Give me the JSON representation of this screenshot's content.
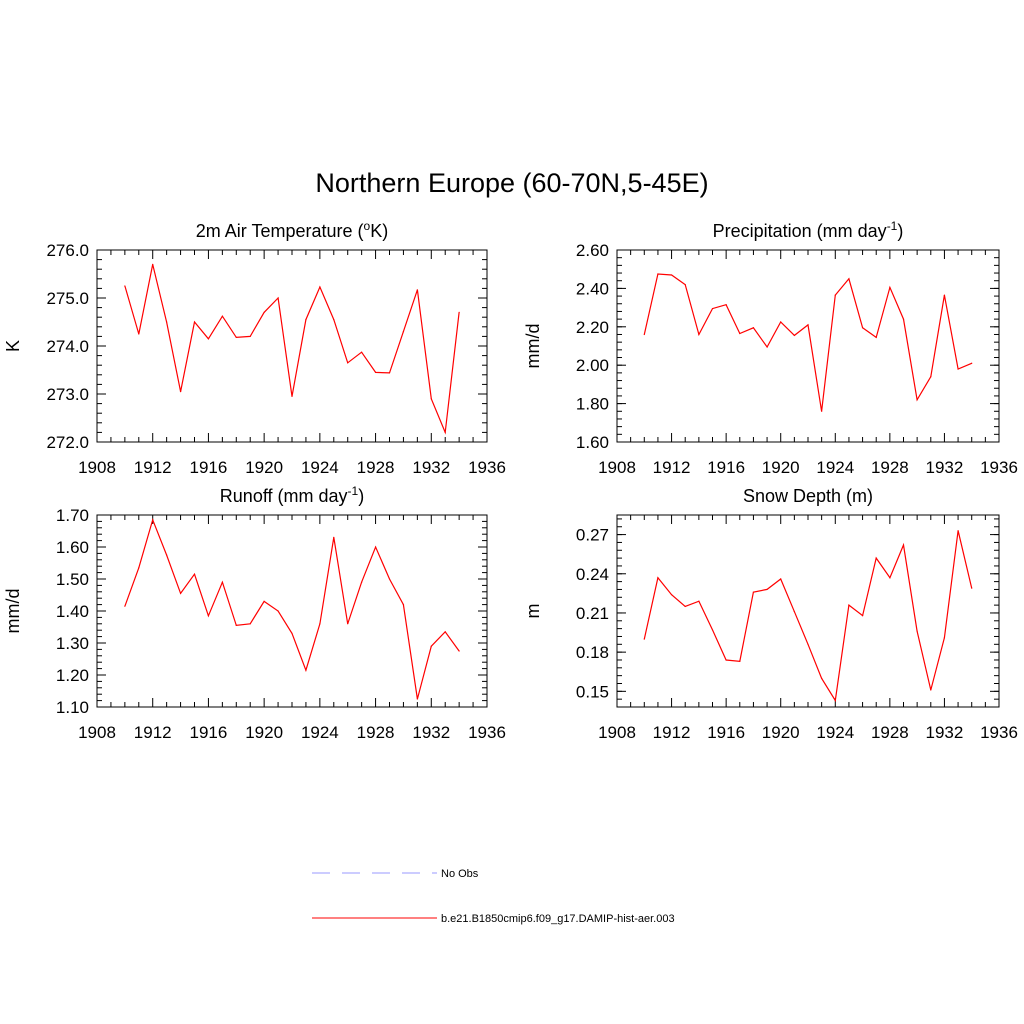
{
  "title": "Northern Europe (60-70N,5-45E)",
  "colors": {
    "model": "#ff0000",
    "obs": "#9999ff",
    "axis": "#000000"
  },
  "legend": [
    {
      "label": "No Obs",
      "style": "dashed",
      "color": "#9999ff"
    },
    {
      "label": "b.e21.B1850cmip6.f09_g17.DAMIP-hist-aer.003",
      "style": "solid",
      "color": "#ff0000"
    }
  ],
  "chart_data": [
    {
      "type": "line",
      "title": "2m Air Temperature (",
      "title_sup": "o",
      "title_tail": "K)",
      "ylabel": "K",
      "xlim": [
        1908,
        1936
      ],
      "ylim": [
        272.0,
        276.0
      ],
      "xticks": [
        1908,
        1912,
        1916,
        1920,
        1924,
        1928,
        1932,
        1936
      ],
      "yticks": [
        "272.0",
        "273.0",
        "274.0",
        "275.0",
        "276.0"
      ],
      "x": [
        1910,
        1911,
        1912,
        1913,
        1914,
        1915,
        1916,
        1917,
        1918,
        1919,
        1920,
        1921,
        1922,
        1923,
        1924,
        1925,
        1926,
        1927,
        1928,
        1929,
        1930,
        1931,
        1932,
        1933,
        1934
      ],
      "series": [
        {
          "values": [
            275.25,
            274.25,
            275.7,
            274.5,
            273.05,
            274.5,
            274.15,
            274.62,
            274.18,
            274.2,
            274.7,
            275.0,
            272.95,
            274.55,
            275.23,
            274.55,
            273.65,
            273.87,
            273.45,
            273.44,
            274.3,
            275.17,
            272.9,
            272.2,
            274.7
          ]
        }
      ]
    },
    {
      "type": "line",
      "title": "Precipitation (mm day",
      "title_sup": "-1",
      "title_tail": ")",
      "ylabel": "mm/d",
      "xlim": [
        1908,
        1936
      ],
      "ylim": [
        1.6,
        2.6
      ],
      "xticks": [
        1908,
        1912,
        1916,
        1920,
        1924,
        1928,
        1932,
        1936
      ],
      "yticks": [
        "1.60",
        "1.80",
        "2.00",
        "2.20",
        "2.40",
        "2.60"
      ],
      "x": [
        1910,
        1911,
        1912,
        1913,
        1914,
        1915,
        1916,
        1917,
        1918,
        1919,
        1920,
        1921,
        1922,
        1923,
        1924,
        1925,
        1926,
        1927,
        1928,
        1929,
        1930,
        1931,
        1932,
        1933,
        1934
      ],
      "series": [
        {
          "values": [
            2.16,
            2.475,
            2.47,
            2.42,
            2.16,
            2.295,
            2.315,
            2.165,
            2.195,
            2.095,
            2.225,
            2.155,
            2.21,
            1.76,
            2.365,
            2.45,
            2.195,
            2.145,
            2.405,
            2.24,
            1.82,
            1.94,
            2.365,
            1.98,
            2.01
          ]
        }
      ]
    },
    {
      "type": "line",
      "title": "Runoff (mm day",
      "title_sup": "-1",
      "title_tail": ")",
      "ylabel": "mm/d",
      "xlim": [
        1908,
        1936
      ],
      "ylim": [
        1.1,
        1.7
      ],
      "xticks": [
        1908,
        1912,
        1916,
        1920,
        1924,
        1928,
        1932,
        1936
      ],
      "yticks": [
        "1.10",
        "1.20",
        "1.30",
        "1.40",
        "1.50",
        "1.60",
        "1.70"
      ],
      "x": [
        1910,
        1911,
        1912,
        1913,
        1914,
        1915,
        1916,
        1917,
        1918,
        1919,
        1920,
        1921,
        1922,
        1923,
        1924,
        1925,
        1926,
        1927,
        1928,
        1929,
        1930,
        1931,
        1932,
        1933,
        1934
      ],
      "series": [
        {
          "values": [
            1.415,
            1.535,
            1.685,
            1.575,
            1.455,
            1.515,
            1.385,
            1.49,
            1.355,
            1.36,
            1.43,
            1.4,
            1.33,
            1.215,
            1.36,
            1.63,
            1.36,
            1.49,
            1.6,
            1.5,
            1.42,
            1.125,
            1.29,
            1.335,
            1.275
          ]
        }
      ]
    },
    {
      "type": "line",
      "title": "Snow Depth (m)",
      "title_sup": "",
      "title_tail": "",
      "ylabel": "m",
      "xlim": [
        1908,
        1936
      ],
      "ylim": [
        0.138,
        0.285
      ],
      "xticks": [
        1908,
        1912,
        1916,
        1920,
        1924,
        1928,
        1932,
        1936
      ],
      "yticks": [
        "0.15",
        "0.18",
        "0.21",
        "0.24",
        "0.27"
      ],
      "ytick_values": [
        0.15,
        0.18,
        0.21,
        0.24,
        0.27
      ],
      "x": [
        1910,
        1911,
        1912,
        1913,
        1914,
        1915,
        1916,
        1917,
        1918,
        1919,
        1920,
        1921,
        1922,
        1923,
        1924,
        1925,
        1926,
        1927,
        1928,
        1929,
        1930,
        1931,
        1932,
        1933,
        1934
      ],
      "series": [
        {
          "values": [
            0.19,
            0.237,
            0.224,
            0.215,
            0.219,
            0.197,
            0.174,
            0.173,
            0.226,
            0.228,
            0.236,
            0.211,
            0.186,
            0.16,
            0.143,
            0.216,
            0.208,
            0.252,
            0.237,
            0.262,
            0.196,
            0.151,
            0.191,
            0.273,
            0.229
          ]
        }
      ]
    }
  ]
}
